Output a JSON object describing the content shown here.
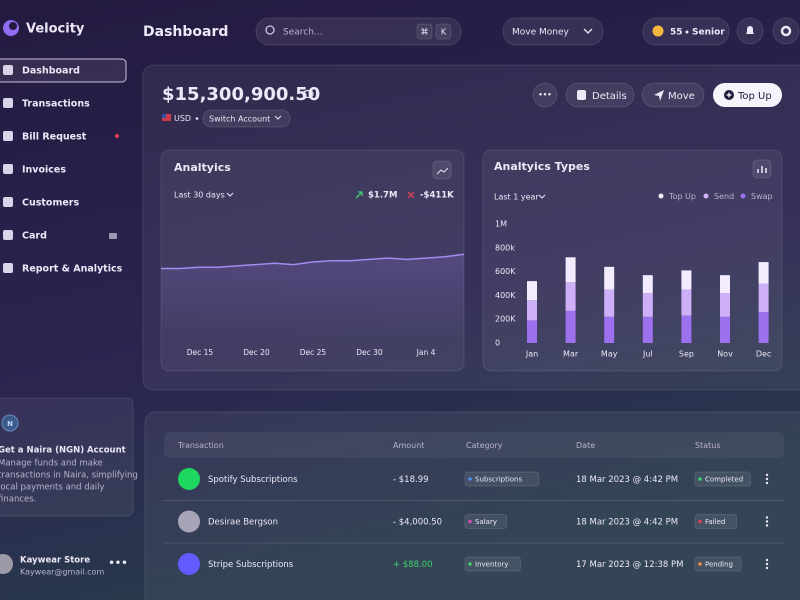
{
  "app": {
    "name": "Velocity"
  },
  "header": {
    "title": "Dashboard",
    "search_placeholder": "Search...",
    "shortcut": [
      "⌘",
      "K"
    ],
    "move_money": "Move Money",
    "points": "55",
    "level": "Senior"
  },
  "sidebar": {
    "nav": [
      "Dashboard",
      "Transactions",
      "Bill Request",
      "Invoices",
      "Customers",
      "Card",
      "Report & Analytics"
    ],
    "promo": {
      "title": "Get a Naira (NGN) Account",
      "text": [
        "Manage funds and make",
        "transactions in Naira, simplifying",
        "local payments and daily",
        "finances."
      ]
    },
    "user": {
      "name": "Kaywear Store",
      "email": "Kaywear@gmail.com"
    }
  },
  "balance": {
    "amount": "$15,300,900.50",
    "currency": "USD",
    "switch": "Switch Account",
    "actions": [
      "Details",
      "Move",
      "Top Up"
    ]
  },
  "analytics": {
    "title": "Analtyics",
    "period": "Last 30 days",
    "income": "$1.7M",
    "outcome": "-$411K",
    "chart_data": {
      "type": "line",
      "color": "#a58af0",
      "ylim": [
        0,
        100
      ],
      "values": [
        55,
        55,
        56,
        56,
        57,
        58,
        59,
        58,
        60,
        61,
        61,
        62,
        63,
        62,
        63,
        64,
        66
      ],
      "xlabels": [
        "Dec 15",
        "Dec 20",
        "Dec 25",
        "Dec 30",
        "Jan 4"
      ]
    }
  },
  "analytics_types": {
    "title": "Analtyics Types",
    "period": "Last 1 year",
    "chart_data": {
      "type": "bar",
      "stacked": true,
      "categories": [
        "Jan",
        "Mar",
        "May",
        "Jul",
        "Sep",
        "Nov",
        "Dec"
      ],
      "series": [
        {
          "name": "Top Up",
          "color": "#f3ecff",
          "values": [
            160000,
            210000,
            190000,
            150000,
            160000,
            150000,
            180000
          ]
        },
        {
          "name": "Send",
          "color": "#cdb0f7",
          "values": [
            170000,
            240000,
            230000,
            200000,
            220000,
            200000,
            240000
          ]
        },
        {
          "name": "Swap",
          "color": "#9d70ee",
          "values": [
            190000,
            270000,
            220000,
            220000,
            230000,
            220000,
            260000
          ]
        }
      ],
      "ylim": [
        0,
        1000000
      ],
      "yticks": [
        0,
        {
          "value": 200000,
          "label": "200K"
        },
        {
          "value": 400000,
          "label": "400K"
        },
        {
          "value": 600000,
          "label": "600K"
        },
        {
          "value": 800000,
          "label": "800k"
        },
        {
          "value": 1000000,
          "label": "1M"
        }
      ]
    }
  },
  "table": {
    "headers": [
      "Transaction",
      "Amount",
      "Category",
      "Date",
      "Status"
    ],
    "rows": [
      [
        "Spotify Subscriptions",
        "- $18.99",
        "Subscriptions",
        "18 Mar 2023 @ 4:42 PM",
        "Completed"
      ],
      [
        "Desirae Bergson",
        "- $4,000.50",
        "Salary",
        "18 Mar 2023 @ 4:42 PM",
        "Failed"
      ],
      [
        "Stripe Subscriptions",
        "+ $88.00",
        "Inventory",
        "17 Mar 2023 @ 12:38 PM",
        "Pending"
      ]
    ]
  }
}
